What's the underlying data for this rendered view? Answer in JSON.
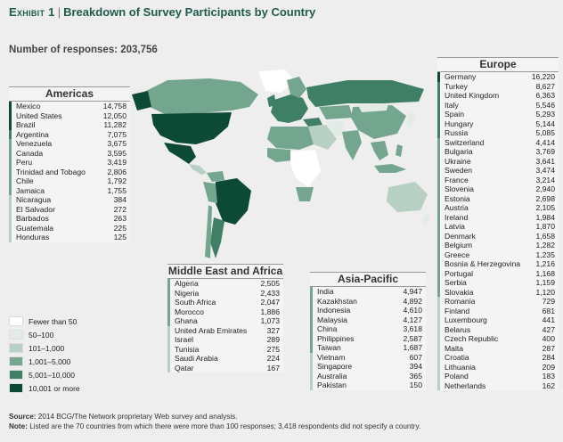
{
  "title": {
    "exhibit": "Exhibit 1",
    "text": "Breakdown of Survey Participants by Country"
  },
  "responses": "Number of responses: 203,756",
  "colors": {
    "b1": "#ffffff",
    "b2": "#e3ebe7",
    "b3": "#b8cfc3",
    "b4": "#74a68f",
    "b5": "#3f7f65",
    "b6": "#0d4a35"
  },
  "chart_data": {
    "type": "table",
    "regions": [
      {
        "name": "Americas",
        "rows": [
          {
            "country": "Mexico",
            "value": "14,758",
            "band": 6
          },
          {
            "country": "United States",
            "value": "12,050",
            "band": 6
          },
          {
            "country": "Brazil",
            "value": "11,282",
            "band": 6
          },
          {
            "country": "Argentina",
            "value": "7,075",
            "band": 5
          },
          {
            "country": "Venezuela",
            "value": "3,675",
            "band": 4
          },
          {
            "country": "Canada",
            "value": "3,595",
            "band": 4
          },
          {
            "country": "Peru",
            "value": "3,419",
            "band": 4
          },
          {
            "country": "Trinidad and Tobago",
            "value": "2,806",
            "band": 4
          },
          {
            "country": "Chile",
            "value": "1,792",
            "band": 4
          },
          {
            "country": "Jamaica",
            "value": "1,755",
            "band": 4
          },
          {
            "country": "Nicaragua",
            "value": "384",
            "band": 3
          },
          {
            "country": "El Salvador",
            "value": "272",
            "band": 3
          },
          {
            "country": "Barbados",
            "value": "263",
            "band": 3
          },
          {
            "country": "Guatemala",
            "value": "225",
            "band": 3
          },
          {
            "country": "Honduras",
            "value": "125",
            "band": 3
          }
        ]
      },
      {
        "name": "Europe",
        "rows": [
          {
            "country": "Germany",
            "value": "16,220",
            "band": 6
          },
          {
            "country": "Turkey",
            "value": "8,627",
            "band": 5
          },
          {
            "country": "United Kingdom",
            "value": "6,363",
            "band": 5
          },
          {
            "country": "Italy",
            "value": "5,546",
            "band": 5
          },
          {
            "country": "Spain",
            "value": "5,293",
            "band": 5
          },
          {
            "country": "Hungary",
            "value": "5,144",
            "band": 5
          },
          {
            "country": "Russia",
            "value": "5,085",
            "band": 5
          },
          {
            "country": "Switzerland",
            "value": "4,414",
            "band": 4
          },
          {
            "country": "Bulgaria",
            "value": "3,769",
            "band": 4
          },
          {
            "country": "Ukraine",
            "value": "3,641",
            "band": 4
          },
          {
            "country": "Sweden",
            "value": "3,474",
            "band": 4
          },
          {
            "country": "France",
            "value": "3,214",
            "band": 4
          },
          {
            "country": "Slovenia",
            "value": "2,940",
            "band": 4
          },
          {
            "country": "Estonia",
            "value": "2,698",
            "band": 4
          },
          {
            "country": "Austria",
            "value": "2,105",
            "band": 4
          },
          {
            "country": "Ireland",
            "value": "1,984",
            "band": 4
          },
          {
            "country": "Latvia",
            "value": "1,870",
            "band": 4
          },
          {
            "country": "Denmark",
            "value": "1,658",
            "band": 4
          },
          {
            "country": "Belgium",
            "value": "1,282",
            "band": 4
          },
          {
            "country": "Greece",
            "value": "1,235",
            "band": 4
          },
          {
            "country": "Bosnia & Herzegovina",
            "value": "1,216",
            "band": 4
          },
          {
            "country": "Portugal",
            "value": "1,168",
            "band": 4
          },
          {
            "country": "Serbia",
            "value": "1,159",
            "band": 4
          },
          {
            "country": "Slovakia",
            "value": "1,120",
            "band": 4
          },
          {
            "country": "Romania",
            "value": "729",
            "band": 3
          },
          {
            "country": "Finland",
            "value": "681",
            "band": 3
          },
          {
            "country": "Luxembourg",
            "value": "441",
            "band": 3
          },
          {
            "country": "Belarus",
            "value": "427",
            "band": 3
          },
          {
            "country": "Czech Republic",
            "value": "400",
            "band": 3
          },
          {
            "country": "Malta",
            "value": "287",
            "band": 3
          },
          {
            "country": "Croatia",
            "value": "284",
            "band": 3
          },
          {
            "country": "Lithuania",
            "value": "209",
            "band": 3
          },
          {
            "country": "Poland",
            "value": "183",
            "band": 3
          },
          {
            "country": "Netherlands",
            "value": "162",
            "band": 3
          }
        ]
      },
      {
        "name": "Middle East and Africa",
        "rows": [
          {
            "country": "Algeria",
            "value": "2,505",
            "band": 4
          },
          {
            "country": "Nigeria",
            "value": "2,433",
            "band": 4
          },
          {
            "country": "South Africa",
            "value": "2,047",
            "band": 4
          },
          {
            "country": "Morocco",
            "value": "1,886",
            "band": 4
          },
          {
            "country": "Ghana",
            "value": "1,073",
            "band": 4
          },
          {
            "country": "United Arab Emirates",
            "value": "327",
            "band": 3
          },
          {
            "country": "Israel",
            "value": "289",
            "band": 3
          },
          {
            "country": "Tunisia",
            "value": "275",
            "band": 3
          },
          {
            "country": "Saudi Arabia",
            "value": "224",
            "band": 3
          },
          {
            "country": "Qatar",
            "value": "167",
            "band": 3
          }
        ]
      },
      {
        "name": "Asia-Pacific",
        "rows": [
          {
            "country": "India",
            "value": "4,947",
            "band": 4
          },
          {
            "country": "Kazakhstan",
            "value": "4,892",
            "band": 4
          },
          {
            "country": "Indonesia",
            "value": "4,610",
            "band": 4
          },
          {
            "country": "Malaysia",
            "value": "4,127",
            "band": 4
          },
          {
            "country": "China",
            "value": "3,618",
            "band": 4
          },
          {
            "country": "Philippines",
            "value": "2,587",
            "band": 4
          },
          {
            "country": "Taiwan",
            "value": "1,687",
            "band": 4
          },
          {
            "country": "Vietnam",
            "value": "607",
            "band": 3
          },
          {
            "country": "Singapore",
            "value": "394",
            "band": 3
          },
          {
            "country": "Australia",
            "value": "365",
            "band": 3
          },
          {
            "country": "Pakistan",
            "value": "150",
            "band": 3
          }
        ]
      }
    ],
    "legend": [
      {
        "label": "Fewer than 50",
        "band": 1
      },
      {
        "label": "50–100",
        "band": 2
      },
      {
        "label": "101–1,000",
        "band": 3
      },
      {
        "label": "1,001–5,000",
        "band": 4
      },
      {
        "label": "5,001–10,000",
        "band": 5
      },
      {
        "label": "10,001 or more",
        "band": 6
      }
    ]
  },
  "footer": {
    "source_label": "Source:",
    "source": "2014 BCG/The Network proprietary Web survey and analysis.",
    "note_label": "Note:",
    "note": "Listed are the 70 countries from which there were more than 100 responses; 3,418 respondents did not specify a country."
  }
}
